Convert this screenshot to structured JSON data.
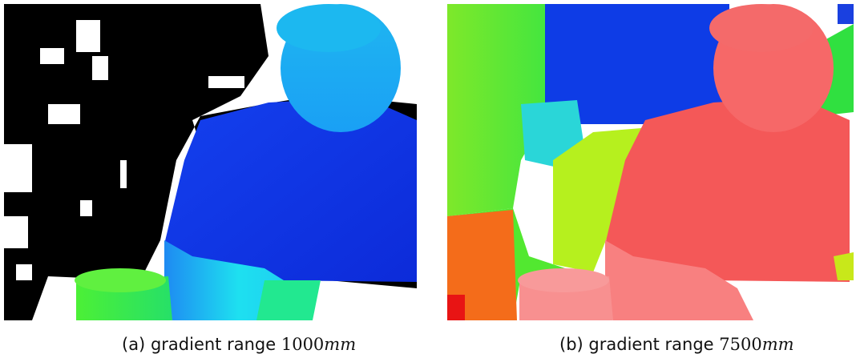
{
  "figure": {
    "panels": [
      {
        "label": "(a)",
        "text": "gradient range",
        "range": "1000",
        "unit": "mm"
      },
      {
        "label": "(b)",
        "text": "gradient range",
        "range": "7500",
        "unit": "mm"
      }
    ]
  }
}
